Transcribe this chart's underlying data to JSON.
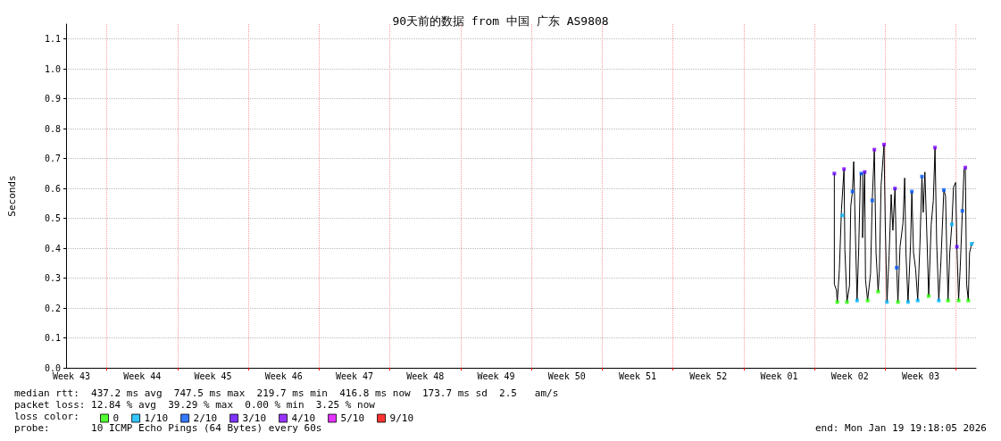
{
  "chart_data": {
    "type": "line",
    "title": "90天前的数据 from 中国 广东 AS9808",
    "ylabel": "Seconds",
    "xlim": [
      "2025-10-21T19:18",
      "2026-01-19T19:18"
    ],
    "xticks": [
      {
        "value": "2025-10-22T08:00",
        "label": "Week 43"
      },
      {
        "value": "2025-10-25T20:00",
        "label": null
      },
      {
        "value": "2025-10-29T08:00",
        "label": "Week 44"
      },
      {
        "value": "2025-11-01T20:00",
        "label": null
      },
      {
        "value": "2025-11-05T08:00",
        "label": "Week 45"
      },
      {
        "value": "2025-11-08T20:00",
        "label": null
      },
      {
        "value": "2025-11-12T08:00",
        "label": "Week 46"
      },
      {
        "value": "2025-11-15T20:00",
        "label": null
      },
      {
        "value": "2025-11-19T08:00",
        "label": "Week 47"
      },
      {
        "value": "2025-11-22T20:00",
        "label": null
      },
      {
        "value": "2025-11-26T08:00",
        "label": "Week 48"
      },
      {
        "value": "2025-11-29T20:00",
        "label": null
      },
      {
        "value": "2025-12-03T08:00",
        "label": "Week 49"
      },
      {
        "value": "2025-12-06T20:00",
        "label": null
      },
      {
        "value": "2025-12-10T08:00",
        "label": "Week 50"
      },
      {
        "value": "2025-12-13T20:00",
        "label": null
      },
      {
        "value": "2025-12-17T08:00",
        "label": "Week 51"
      },
      {
        "value": "2025-12-20T20:00",
        "label": null
      },
      {
        "value": "2025-12-24T08:00",
        "label": "Week 52"
      },
      {
        "value": "2025-12-27T20:00",
        "label": null
      },
      {
        "value": "2025-12-31T08:00",
        "label": "Week 01"
      },
      {
        "value": "2026-01-03T20:00",
        "label": null
      },
      {
        "value": "2026-01-07T08:00",
        "label": "Week 02"
      },
      {
        "value": "2026-01-10T20:00",
        "label": null
      },
      {
        "value": "2026-01-14T08:00",
        "label": "Week 03"
      },
      {
        "value": "2026-01-17T20:00",
        "label": null
      }
    ],
    "ylim": [
      0,
      1.15
    ],
    "yticks": [
      {
        "value": 0,
        "label": "0.0"
      },
      0.1,
      0.2,
      0.3,
      0.4,
      0.5,
      0.6,
      0.7,
      0.8,
      0.9,
      {
        "value": 1,
        "label": "1.0"
      },
      1.1
    ],
    "grid": true,
    "legend": "bottom left",
    "series": [
      {
        "color": "#000000",
        "x": [
          "2026-01-05T19:00",
          "2026-01-05T19:00",
          "2026-01-06T00:00",
          "2026-01-06T02:00",
          "2026-01-06T07:00",
          "2026-01-06T12:00",
          "2026-01-06T18:00",
          "2026-01-06T20:00",
          "2026-01-07T01:00",
          "2026-01-07T07:00",
          "2026-01-07T10:00",
          "2026-01-07T14:00",
          "2026-01-07T17:00",
          "2026-01-07T21:00",
          "2026-01-08T01:00",
          "2026-01-08T05:00",
          "2026-01-08T09:00",
          "2026-01-08T14:00",
          "2026-01-08T14:00",
          "2026-01-08T19:00",
          "2026-01-08T21:00",
          "2026-01-09T02:00",
          "2026-01-09T09:00",
          "2026-01-09T13:00",
          "2026-01-09T18:00",
          "2026-01-09T22:00",
          "2026-01-10T03:00",
          "2026-01-10T06:00",
          "2026-01-10T10:00",
          "2026-01-10T17:00",
          "2026-01-10T20:00",
          "2026-01-11T00:00",
          "2026-01-11T05:00",
          "2026-01-11T10:00",
          "2026-01-11T14:00",
          "2026-01-11T19:00",
          "2026-01-11T23:00",
          "2026-01-12T02:00",
          "2026-01-12T07:00",
          "2026-01-12T14:00",
          "2026-01-12T18:00",
          "2026-01-12T21:00",
          "2026-01-13T02:00",
          "2026-01-13T08:00",
          "2026-01-13T11:00",
          "2026-01-13T15:00",
          "2026-01-13T20:00",
          "2026-01-14T01:00",
          "2026-01-14T06:00",
          "2026-01-14T11:00",
          "2026-01-14T14:00",
          "2026-01-14T18:00",
          "2026-01-14T23:00",
          "2026-01-15T03:00",
          "2026-01-15T09:00",
          "2026-01-15T14:00",
          "2026-01-15T18:00",
          "2026-01-15T22:00",
          "2026-01-16T03:00",
          "2026-01-16T08:00",
          "2026-01-16T15:00",
          "2026-01-16T19:00",
          "2026-01-16T22:00",
          "2026-01-17T01:00",
          "2026-01-17T05:00",
          "2026-01-17T10:00",
          "2026-01-17T14:00",
          "2026-01-17T19:00",
          "2026-01-17T22:00",
          "2026-01-18T02:00",
          "2026-01-18T06:00",
          "2026-01-18T11:00",
          "2026-01-18T15:00",
          "2026-01-18T18:00",
          "2026-01-18T21:00",
          "2026-01-19T01:00",
          "2026-01-19T04:00",
          "2026-01-19T09:00",
          "2026-01-19T14:00"
        ],
        "values": [
          0.65,
          0.28,
          0.26,
          0.22,
          0.33,
          0.53,
          0.665,
          0.395,
          0.22,
          0.275,
          0.54,
          0.59,
          0.69,
          0.45,
          0.225,
          0.405,
          0.65,
          0.65,
          0.435,
          0.655,
          0.295,
          0.225,
          0.315,
          0.56,
          0.73,
          0.385,
          0.255,
          0.325,
          0.61,
          0.747,
          0.475,
          0.22,
          0.375,
          0.58,
          0.46,
          0.6,
          0.335,
          0.22,
          0.405,
          0.485,
          0.635,
          0.385,
          0.22,
          0.415,
          0.59,
          0.385,
          0.33,
          0.225,
          0.405,
          0.64,
          0.52,
          0.655,
          0.43,
          0.24,
          0.48,
          0.56,
          0.737,
          0.415,
          0.225,
          0.355,
          0.595,
          0.575,
          0.385,
          0.225,
          0.385,
          0.48,
          0.605,
          0.62,
          0.405,
          0.225,
          0.34,
          0.525,
          0.665,
          0.67,
          0.28,
          0.225,
          0.385,
          0.415,
          0.42
        ]
      },
      {
        "type": "scatter",
        "name": "0",
        "color": "#26ff00",
        "x": [
          "2026-01-06T02:00",
          "2026-01-07T01:00",
          "2026-01-09T02:00",
          "2026-01-10T03:00",
          "2026-01-12T02:00",
          "2026-01-15T03:00",
          "2026-01-17T01:00",
          "2026-01-18T02:00",
          "2026-01-19T01:00"
        ],
        "values": [
          0.22,
          0.22,
          0.225,
          0.255,
          0.22,
          0.24,
          0.225,
          0.225,
          0.225
        ]
      },
      {
        "type": "scatter",
        "name": "1/10",
        "color": "#00b8ff",
        "x": [
          "2026-01-06T14:00",
          "2026-01-08T01:00",
          "2026-01-11T00:00",
          "2026-01-13T02:00",
          "2026-01-14T01:00",
          "2026-01-16T03:00",
          "2026-01-17T10:00",
          "2026-01-19T09:00"
        ],
        "values": [
          0.51,
          0.225,
          0.22,
          0.22,
          0.225,
          0.225,
          0.48,
          0.415
        ]
      },
      {
        "type": "scatter",
        "name": "2/10",
        "color": "#0059ff",
        "x": [
          "2026-01-07T14:00",
          "2026-01-08T11:00",
          "2026-01-09T13:00",
          "2026-01-11T23:00",
          "2026-01-13T11:00",
          "2026-01-14T11:00",
          "2026-01-16T15:00",
          "2026-01-18T11:00"
        ],
        "values": [
          0.59,
          0.65,
          0.56,
          0.335,
          0.59,
          0.64,
          0.595,
          0.525
        ]
      },
      {
        "type": "scatter",
        "name": "3/10",
        "color": "#5e00ff",
        "x": [
          "2026-01-05T19:00",
          "2026-01-08T19:00",
          "2026-01-11T19:00",
          "2026-01-17T22:00"
        ],
        "values": [
          0.65,
          0.655,
          0.6,
          0.405
        ]
      },
      {
        "type": "scatter",
        "name": "4/10",
        "color": "#7e00ff",
        "x": [
          "2026-01-06T18:00",
          "2026-01-09T18:00",
          "2026-01-10T17:00",
          "2026-01-15T18:00",
          "2026-01-18T18:00"
        ],
        "values": [
          0.665,
          0.73,
          0.747,
          0.737,
          0.67
        ]
      },
      {
        "type": "scatter",
        "name": "5/10",
        "color": "#dd00ff"
      },
      {
        "type": "scatter",
        "name": "9/10",
        "color": "#ff0000"
      }
    ],
    "annotations": [
      "median rtt:  437.2 ms avg  747.5 ms max  219.7 ms min  416.8 ms now  173.7 ms sd  2.5   am/s",
      "packet loss: 12.84 % avg  39.29 % max  0.00 % min  3.25 % now",
      "loss color:",
      "probe:       10 ICMP Echo Pings (64 Bytes) every 60s",
      "end: Mon Jan 19 19:18:05 2026"
    ]
  }
}
